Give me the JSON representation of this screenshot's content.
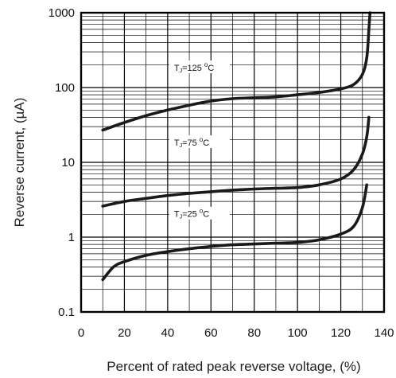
{
  "chart_data": {
    "type": "line",
    "xlabel": "Percent of rated peak reverse voltage, (%)",
    "ylabel": "Reverse current, (µA)",
    "x_ticks": [
      "0",
      "20",
      "40",
      "60",
      "80",
      "100",
      "120",
      "140"
    ],
    "y_ticks": [
      "0.1",
      "1",
      "10",
      "100",
      "1000"
    ],
    "xlim": [
      0,
      140
    ],
    "ylim": [
      0.1,
      1000
    ],
    "y_scale": "log",
    "grid": true,
    "series": [
      {
        "label": {
          "main": "T",
          "sub": "J",
          "eq": "=125 ",
          "sup": "o",
          "unit": "C"
        },
        "x": [
          10,
          20,
          30,
          40,
          50,
          60,
          70,
          80,
          90,
          100,
          110,
          120,
          126,
          130,
          132,
          133,
          133.5
        ],
        "y": [
          27,
          34,
          42,
          50,
          58,
          66,
          71,
          73,
          75,
          80,
          86,
          96,
          110,
          150,
          250,
          600,
          1000
        ]
      },
      {
        "label": {
          "main": "T",
          "sub": "J",
          "eq": "=75 ",
          "sup": "o",
          "unit": "C"
        },
        "x": [
          10,
          20,
          30,
          40,
          50,
          60,
          70,
          80,
          90,
          100,
          110,
          120,
          126,
          130,
          132,
          133
        ],
        "y": [
          2.6,
          3.0,
          3.3,
          3.6,
          3.85,
          4.05,
          4.25,
          4.4,
          4.5,
          4.6,
          5.0,
          6.0,
          8.0,
          13,
          22,
          40
        ]
      },
      {
        "label": {
          "main": "T",
          "sub": "J",
          "eq": "=25 ",
          "sup": "o",
          "unit": "C"
        },
        "x": [
          10,
          15,
          20,
          30,
          40,
          50,
          60,
          70,
          80,
          90,
          100,
          110,
          120,
          126,
          130,
          132
        ],
        "y": [
          0.27,
          0.4,
          0.47,
          0.57,
          0.64,
          0.7,
          0.75,
          0.79,
          0.81,
          0.83,
          0.85,
          0.92,
          1.1,
          1.4,
          2.5,
          5.0
        ]
      }
    ]
  }
}
